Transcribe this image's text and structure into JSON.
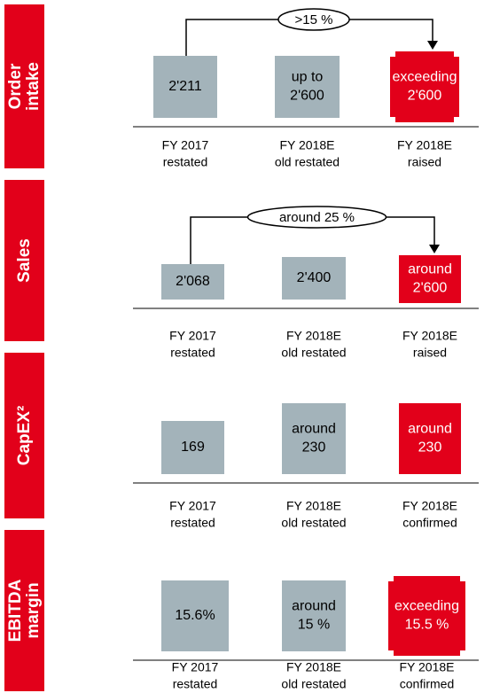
{
  "panels": [
    {
      "label": [
        "Order",
        "intake"
      ],
      "arrow_label": ">15 %",
      "items": [
        {
          "text": [
            "2'211"
          ],
          "caption": [
            "FY 2017",
            "restated"
          ]
        },
        {
          "text": [
            "up to",
            "2'600"
          ],
          "caption": [
            "FY 2018E",
            "old restated"
          ]
        },
        {
          "text": [
            "exceeding",
            "2'600"
          ],
          "caption": [
            "FY 2018E",
            "raised"
          ]
        }
      ]
    },
    {
      "label": [
        "Sales"
      ],
      "arrow_label": "around 25 %",
      "items": [
        {
          "text": [
            "2'068"
          ],
          "caption": [
            "FY 2017",
            "restated"
          ]
        },
        {
          "text": [
            "2'400"
          ],
          "caption": [
            "FY 2018E",
            "old restated"
          ]
        },
        {
          "text": [
            "around",
            "2'600"
          ],
          "caption": [
            "FY 2018E",
            "raised"
          ]
        }
      ]
    },
    {
      "label": [
        "CapEX²"
      ],
      "items": [
        {
          "text": [
            "169"
          ],
          "caption": [
            "FY 2017",
            "restated"
          ]
        },
        {
          "text": [
            "around",
            "230"
          ],
          "caption": [
            "FY 2018E",
            "old restated"
          ]
        },
        {
          "text": [
            "around",
            "230"
          ],
          "caption": [
            "FY 2018E",
            "confirmed"
          ]
        }
      ]
    },
    {
      "label": [
        "EBITDA",
        "margin"
      ],
      "items": [
        {
          "text": [
            "15.6%"
          ],
          "caption": [
            "FY 2017",
            "restated"
          ]
        },
        {
          "text": [
            "around",
            "15 %"
          ],
          "caption": [
            "FY 2018E",
            "old restated"
          ]
        },
        {
          "text": [
            "exceeding",
            "15.5 %"
          ],
          "caption": [
            "FY 2018E",
            "confirmed"
          ]
        }
      ]
    }
  ]
}
